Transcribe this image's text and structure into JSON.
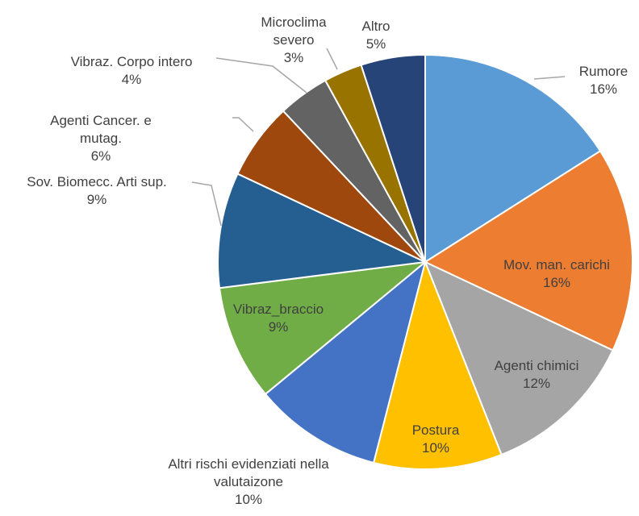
{
  "chart_data": {
    "type": "pie",
    "categories": [
      "Rumore",
      "Mov. man. carichi",
      "Agenti chimici",
      "Postura",
      "Altri rischi evidenziati nella valutaizone",
      "Vibraz_braccio",
      "Sov. Biomecc. Arti sup.",
      "Agenti Cancer. e mutag.",
      "Vibraz. Corpo intero",
      "Microclima severo",
      "Altro"
    ],
    "values": [
      16,
      16,
      12,
      10,
      10,
      9,
      9,
      6,
      4,
      3,
      5
    ],
    "value_labels": [
      "16%",
      "16%",
      "12%",
      "10%",
      "10%",
      "9%",
      "9%",
      "6%",
      "4%",
      "3%",
      "5%"
    ],
    "colors": [
      "#5b9bd5",
      "#ed7d31",
      "#a5a5a5",
      "#ffc000",
      "#4472c4",
      "#70ad47",
      "#255e91",
      "#9e480e",
      "#636363",
      "#997300",
      "#264478"
    ]
  }
}
